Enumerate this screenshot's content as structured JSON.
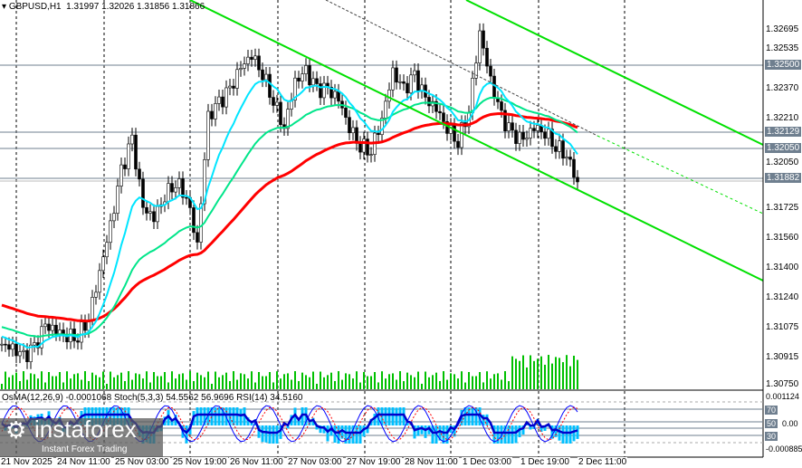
{
  "header": {
    "symbol": "GBPUSD,H1",
    "open": "1.31997",
    "high": "1.32026",
    "low": "1.31856",
    "close": "1.31866"
  },
  "price_axis": [
    "1.32695",
    "1.32535",
    "1.32370",
    "1.32210",
    "1.32050",
    "1.31725",
    "1.31560",
    "1.31400",
    "1.31240",
    "1.31075",
    "1.30915",
    "1.30750"
  ],
  "level_tags": [
    "1.32500",
    "1.32129",
    "1.32050",
    "1.31882"
  ],
  "time_axis": [
    "21 Nov 2025",
    "24 Nov 11:00",
    "25 Nov 03:00",
    "25 Nov 19:00",
    "26 Nov 11:00",
    "27 Nov 03:00",
    "27 Nov 19:00",
    "28 Nov 11:00",
    "1 Dec 03:00",
    "1 Dec 19:00",
    "2 Dec 11:00"
  ],
  "indicator": {
    "label": "OsMA(12,26,9) -0.0001068  Stoch(5,3,3) 54.5562 56.9696  RSI(14) 34.5160",
    "axis_top": "0.001124",
    "axis_mid": "0.00",
    "axis_bottom": "-0.000885",
    "levels": [
      "80",
      "70",
      "50",
      "30",
      "20"
    ]
  },
  "watermark": {
    "brand": "instaforex",
    "tagline": "Instant Forex Trading"
  },
  "colors": {
    "ma_fast": "#00e5ff",
    "ma_mid": "#00e58a",
    "ma_slow": "#ff0000",
    "trend": "#00e000",
    "osma": "#00bfff",
    "rsi": "#0000cc"
  },
  "chart_data": {
    "type": "candlestick",
    "symbol": "GBPUSD",
    "timeframe": "H1",
    "ylim": [
      1.3075,
      1.32695
    ],
    "closes": [
      1.30981,
      1.30956,
      1.30907,
      1.30956,
      1.3108,
      1.31055,
      1.3103,
      1.3103,
      1.31129,
      1.31376,
      1.31623,
      1.31919,
      1.32092,
      1.31722,
      1.31672,
      1.31796,
      1.3187,
      1.31796,
      1.31524,
      1.32216,
      1.3229,
      1.32364,
      1.32488,
      1.32562,
      1.32463,
      1.32315,
      1.32166,
      1.32413,
      1.32463,
      1.32364,
      1.32364,
      1.32315,
      1.32166,
      1.32068,
      1.32043,
      1.32216,
      1.32463,
      1.32364,
      1.32438,
      1.32315,
      1.32265,
      1.32166,
      1.32092,
      1.32265,
      1.32685,
      1.32413,
      1.32216,
      1.32117,
      1.32092,
      1.32166,
      1.32142,
      1.32068,
      1.32018,
      1.31866
    ]
  }
}
